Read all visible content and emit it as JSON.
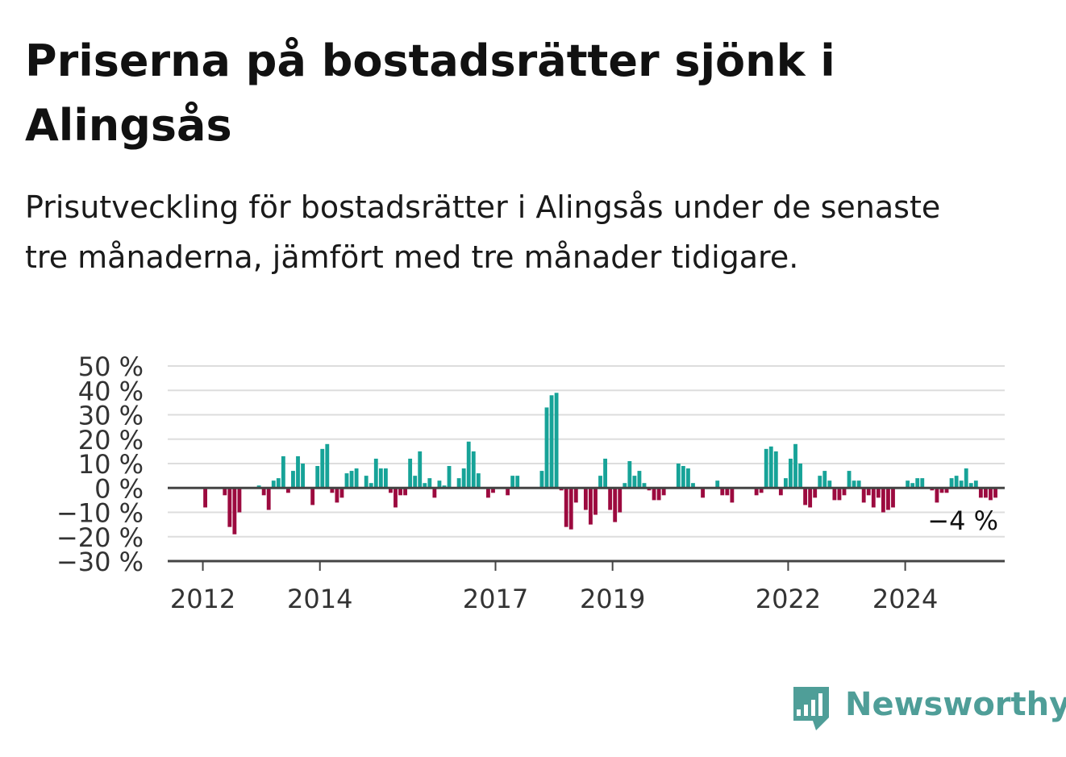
{
  "header": {
    "title": "Priserna på bostadsrätter sjönk i Alingsås",
    "subtitle": "Prisutveckling för bostadsrätter i Alingsås under de senaste tre månaderna, jämfört med tre månader tidigare."
  },
  "brand": {
    "name": "Newsworthy",
    "icon": "newsworthy-logo-icon",
    "color": "#4f9e98"
  },
  "chart_data": {
    "type": "bar",
    "title": "",
    "xlabel": "",
    "ylabel": "",
    "ylim": [
      -30,
      50
    ],
    "yticks": [
      50,
      40,
      30,
      20,
      10,
      0,
      -10,
      -20,
      -30
    ],
    "ytick_labels": [
      "50 %",
      "40 %",
      "30 %",
      "20 %",
      "10 %",
      "0 %",
      "−10 %",
      "−20 %",
      "−30 %"
    ],
    "xlim": [
      2011.4,
      2025.7
    ],
    "xticks": [
      2012,
      2014,
      2017,
      2019,
      2022,
      2024
    ],
    "xtick_labels": [
      "2012",
      "2014",
      "2017",
      "2019",
      "2022",
      "2024"
    ],
    "grid": true,
    "legend": "none",
    "colors": {
      "positive": "#17a398",
      "negative": "#9c0a3f",
      "grid": "#dddddd",
      "axis": "#444444"
    },
    "bar_interval": "month",
    "start": "2012-01",
    "values": [
      -8,
      0,
      0,
      0,
      -3,
      -16,
      -19,
      -10,
      0,
      0,
      0,
      1,
      -3,
      -9,
      3,
      4,
      13,
      -2,
      7,
      13,
      10,
      0,
      -7,
      9,
      16,
      18,
      -2,
      -6,
      -4,
      6,
      7,
      8,
      0,
      5,
      2,
      12,
      8,
      8,
      -2,
      -8,
      -3,
      -3,
      12,
      5,
      15,
      2,
      4,
      -4,
      3,
      1,
      9,
      0,
      4,
      8,
      19,
      15,
      6,
      0,
      -4,
      -2,
      0,
      0,
      -3,
      5,
      5,
      0,
      0,
      0,
      0,
      7,
      33,
      38,
      39,
      -1,
      -16,
      -17,
      -6,
      0,
      -9,
      -15,
      -11,
      5,
      12,
      -9,
      -14,
      -10,
      2,
      11,
      5,
      7,
      2,
      -1,
      -5,
      -5,
      -3,
      0,
      0,
      10,
      9,
      8,
      2,
      0,
      -4,
      0,
      0,
      3,
      -3,
      -3,
      -6,
      0,
      0,
      0,
      0,
      -3,
      -2,
      16,
      17,
      15,
      -3,
      4,
      12,
      18,
      10,
      -7,
      -8,
      -4,
      5,
      7,
      3,
      -5,
      -5,
      -3,
      7,
      3,
      3,
      -6,
      -3,
      -8,
      -4,
      -10,
      -9,
      -8,
      0,
      0,
      3,
      2,
      4,
      4,
      0,
      -1,
      -6,
      -2,
      -2,
      4,
      5,
      3,
      8,
      2,
      3,
      -4,
      -4,
      -5,
      -4
    ],
    "annotations": [
      {
        "text": "−4 %",
        "x": "2025-04",
        "y": -4
      }
    ]
  }
}
